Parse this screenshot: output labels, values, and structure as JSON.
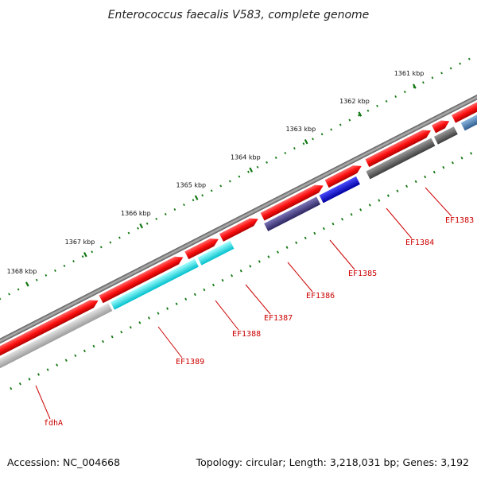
{
  "title": "Enterococcus faecalis V583, complete genome",
  "footer": {
    "accession": "Accession: NC_004668",
    "summary": "Topology: circular; Length: 3,218,031 bp; Genes: 3,192"
  },
  "ticks": [
    {
      "label": "1361 kbp",
      "kbp": 1361
    },
    {
      "label": "1362 kbp",
      "kbp": 1362
    },
    {
      "label": "1363 kbp",
      "kbp": 1363
    },
    {
      "label": "1364 kbp",
      "kbp": 1364
    },
    {
      "label": "1365 kbp",
      "kbp": 1365
    },
    {
      "label": "1366 kbp",
      "kbp": 1366
    },
    {
      "label": "1367 kbp",
      "kbp": 1367
    },
    {
      "label": "1368 kbp",
      "kbp": 1368
    }
  ],
  "genes": [
    {
      "name": "EF1383",
      "id": "EF1383"
    },
    {
      "name": "EF1384",
      "id": "EF1384"
    },
    {
      "name": "EF1385",
      "id": "EF1385"
    },
    {
      "name": "EF1386",
      "id": "EF1386"
    },
    {
      "name": "EF1387",
      "id": "EF1387"
    },
    {
      "name": "EF1388",
      "id": "EF1388"
    },
    {
      "name": "EF1389",
      "id": "EF1389"
    },
    {
      "name": "fdhA",
      "id": "fdhA"
    }
  ],
  "colors": {
    "backbone": "#7a7a7a",
    "forward_gene": "#ee0000",
    "tick": "#117711",
    "label": "#cc0000",
    "steelblue": "#4a7fb5",
    "gray": "#666666",
    "blue": "#0000dd",
    "slateblue": "#48408a",
    "cyan": "#00e5ee",
    "lightgray": "#c0c0c0"
  }
}
